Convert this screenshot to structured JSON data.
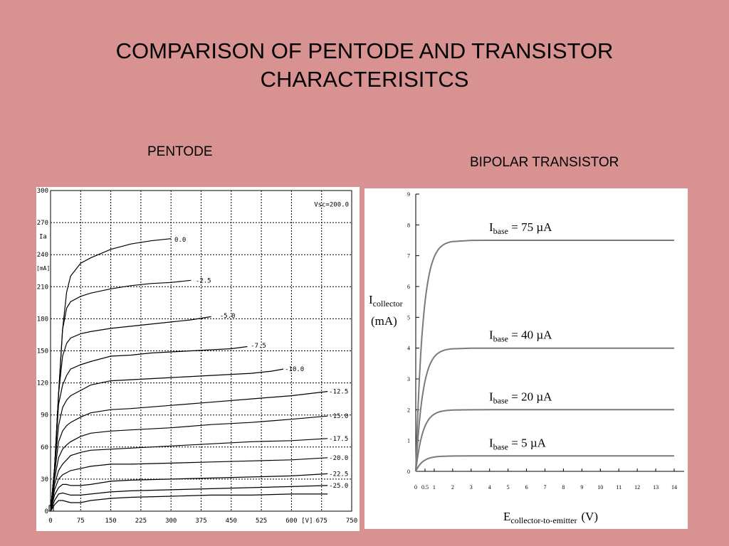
{
  "slide": {
    "title_line1": "COMPARISON OF PENTODE AND TRANSISTOR",
    "title_line2": "CHARACTERISITCS",
    "pentode_label": "PENTODE",
    "bjt_label": "BIPOLAR TRANSISTOR"
  },
  "colors": {
    "background": "#d89292",
    "panel": "#ffffff",
    "pentode_curve": "#000000",
    "bjt_curve": "#7a7a7a"
  },
  "chart_data": [
    {
      "type": "line",
      "name": "pentode",
      "ylabel": "Ia",
      "yunit": "[mA]",
      "xunit": "[V]",
      "annotation": "Vsc=200.0",
      "xlim": [
        0,
        750
      ],
      "ylim": [
        0,
        300
      ],
      "xticks": [
        0,
        75,
        150,
        225,
        300,
        375,
        450,
        525,
        600,
        675,
        750
      ],
      "yticks": [
        0,
        30,
        60,
        90,
        120,
        150,
        180,
        210,
        240,
        270,
        300
      ],
      "grid": true,
      "series": [
        {
          "name": "0.0",
          "label_x": 305,
          "label_y": 254,
          "x": [
            0,
            10,
            20,
            30,
            40,
            50,
            75,
            100,
            150,
            200,
            250,
            300
          ],
          "y": [
            0,
            40,
            110,
            170,
            205,
            220,
            232,
            237,
            245,
            250,
            253,
            255
          ]
        },
        {
          "name": "-2.5",
          "label_x": 358,
          "label_y": 216,
          "x": [
            0,
            10,
            20,
            30,
            40,
            50,
            75,
            100,
            150,
            200,
            250,
            300,
            350
          ],
          "y": [
            0,
            40,
            110,
            170,
            190,
            196,
            201,
            204,
            208,
            211,
            213,
            214,
            216
          ]
        },
        {
          "name": "-5.0",
          "label_x": 418,
          "label_y": 183,
          "x": [
            0,
            10,
            20,
            30,
            40,
            50,
            75,
            100,
            150,
            200,
            250,
            300,
            350,
            400
          ],
          "y": [
            0,
            40,
            110,
            145,
            157,
            162,
            166,
            168,
            171,
            173,
            175,
            177,
            179,
            182
          ]
        },
        {
          "name": "-7.5",
          "label_x": 495,
          "label_y": 155,
          "x": [
            0,
            10,
            20,
            30,
            40,
            50,
            75,
            100,
            150,
            200,
            250,
            300,
            350,
            400,
            450,
            490
          ],
          "y": [
            0,
            40,
            100,
            118,
            127,
            133,
            137,
            140,
            145,
            146,
            148,
            149,
            150,
            151,
            152,
            154
          ]
        },
        {
          "name": "-10.0",
          "label_x": 580,
          "label_y": 133,
          "x": [
            0,
            10,
            20,
            30,
            40,
            50,
            75,
            100,
            150,
            200,
            250,
            300,
            350,
            400,
            450,
            500,
            550,
            580
          ],
          "y": [
            0,
            40,
            80,
            97,
            104,
            108,
            113,
            118,
            122,
            123,
            124,
            125,
            126,
            127,
            128,
            129,
            131,
            133
          ]
        },
        {
          "name": "-12.5",
          "label_x": 690,
          "label_y": 112,
          "x": [
            0,
            10,
            20,
            30,
            40,
            50,
            75,
            100,
            150,
            200,
            300,
            400,
            500,
            600,
            690
          ],
          "y": [
            0,
            35,
            65,
            75,
            80,
            83,
            88,
            92,
            95,
            96,
            99,
            102,
            105,
            108,
            112
          ]
        },
        {
          "name": "-15.0",
          "label_x": 690,
          "label_y": 89,
          "x": [
            0,
            10,
            20,
            30,
            40,
            50,
            75,
            100,
            150,
            200,
            300,
            400,
            500,
            600,
            690
          ],
          "y": [
            0,
            30,
            50,
            58,
            62,
            65,
            70,
            73,
            75,
            76,
            78,
            81,
            83,
            86,
            89
          ]
        },
        {
          "name": "-17.5",
          "label_x": 690,
          "label_y": 68,
          "x": [
            0,
            10,
            20,
            30,
            40,
            50,
            75,
            100,
            150,
            200,
            300,
            400,
            500,
            600,
            690
          ],
          "y": [
            0,
            25,
            38,
            44,
            48,
            52,
            55,
            57,
            58,
            59,
            61,
            63,
            65,
            66,
            68
          ]
        },
        {
          "name": "-20.0",
          "label_x": 690,
          "label_y": 50,
          "x": [
            0,
            10,
            20,
            30,
            40,
            50,
            75,
            100,
            150,
            200,
            300,
            400,
            500,
            600,
            690
          ],
          "y": [
            0,
            20,
            30,
            34,
            36,
            38,
            40,
            42,
            44,
            44,
            45,
            46,
            47,
            48,
            50
          ]
        },
        {
          "name": "-22.5",
          "label_x": 690,
          "label_y": 35,
          "x": [
            0,
            10,
            20,
            30,
            40,
            50,
            75,
            100,
            150,
            200,
            300,
            400,
            500,
            600,
            690
          ],
          "y": [
            0,
            15,
            22,
            25,
            25,
            24,
            24,
            25,
            28,
            29,
            30,
            31,
            32,
            33,
            35
          ]
        },
        {
          "name": "-25.0",
          "label_x": 690,
          "label_y": 24,
          "x": [
            0,
            10,
            20,
            30,
            40,
            50,
            75,
            100,
            150,
            200,
            300,
            400,
            500,
            600,
            690
          ],
          "y": [
            0,
            10,
            16,
            17,
            16,
            15,
            15,
            16,
            18,
            19,
            20,
            21,
            22,
            23,
            24
          ]
        },
        {
          "name": "",
          "x": [
            0,
            10,
            20,
            30,
            40,
            50,
            75,
            100,
            150,
            200,
            300,
            400,
            500,
            600,
            690
          ],
          "y": [
            0,
            6,
            10,
            10,
            9,
            8,
            8,
            10,
            12,
            13,
            14,
            15,
            15,
            16,
            16
          ]
        }
      ]
    },
    {
      "type": "line",
      "name": "bipolar-transistor",
      "ylabel_main": "I",
      "ylabel_sub": "collector",
      "ylabel_unit": "(mA)",
      "xlabel_main": "E",
      "xlabel_sub": "collector-to-emitter",
      "xlabel_unit": "(V)",
      "xlim": [
        0,
        14
      ],
      "ylim": [
        0,
        9
      ],
      "xticks": [
        "0",
        "0.5",
        "1",
        "2",
        "3",
        "4",
        "5",
        "6",
        "7",
        "8",
        "9",
        "10",
        "11",
        "12",
        "13",
        "14"
      ],
      "yticks": [
        0,
        1,
        2,
        3,
        4,
        5,
        6,
        7,
        8,
        9
      ],
      "grid": false,
      "series": [
        {
          "name_main": "I",
          "name_sub": "base",
          "name_value": " = 75 µA",
          "saturation": 7.5
        },
        {
          "name_main": "I",
          "name_sub": "base",
          "name_value": " = 40 µA",
          "saturation": 4.0
        },
        {
          "name_main": "I",
          "name_sub": "base",
          "name_value": " = 20 µA",
          "saturation": 2.0
        },
        {
          "name_main": "I",
          "name_sub": "base",
          "name_value": " = 5 µA",
          "saturation": 0.5
        }
      ]
    }
  ]
}
